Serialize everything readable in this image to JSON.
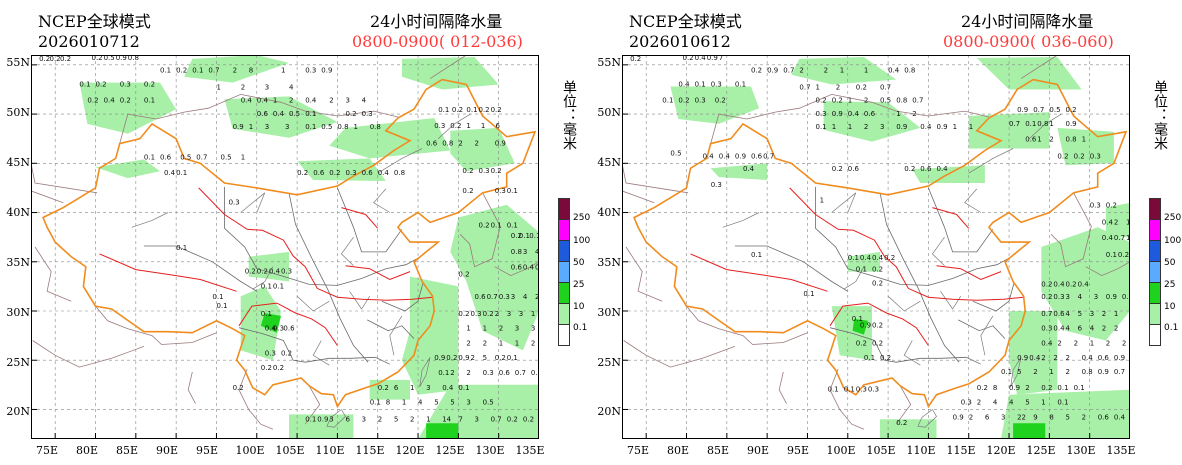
{
  "panels": [
    {
      "model": "NCEP全球模式",
      "run": "2026010712",
      "title": "24小时间隔降水量",
      "period": "0800-0900( 012-036)",
      "unit": "单位：毫米"
    },
    {
      "model": "NCEP全球模式",
      "run": "2026010612",
      "title": "24小时间隔降水量",
      "period": "0800-0900( 036-060)",
      "unit": "单位：毫米"
    }
  ],
  "axes": {
    "latitudes": [
      "55N",
      "50N",
      "45N",
      "40N",
      "35N",
      "30N",
      "25N",
      "20N"
    ],
    "longitudes": [
      "75E",
      "80E",
      "85E",
      "90E",
      "95E",
      "100E",
      "105E",
      "110E",
      "115E",
      "120E",
      "125E",
      "130E",
      "135E"
    ]
  },
  "legend": {
    "labels": [
      "250",
      "100",
      "50",
      "25",
      "10",
      "0.1"
    ],
    "colors": [
      "#7a0a3a",
      "#ff00ff",
      "#1e5adc",
      "#5aaaff",
      "#1ed21e",
      "#a8f0a8",
      "#ffffff"
    ]
  },
  "colors": {
    "light_green": "#a8f0a8",
    "green": "#1ed21e",
    "border_orange": "#f08c1e",
    "border_red": "#e61e1e",
    "border_gray": "#808080",
    "grid": "#888888"
  }
}
